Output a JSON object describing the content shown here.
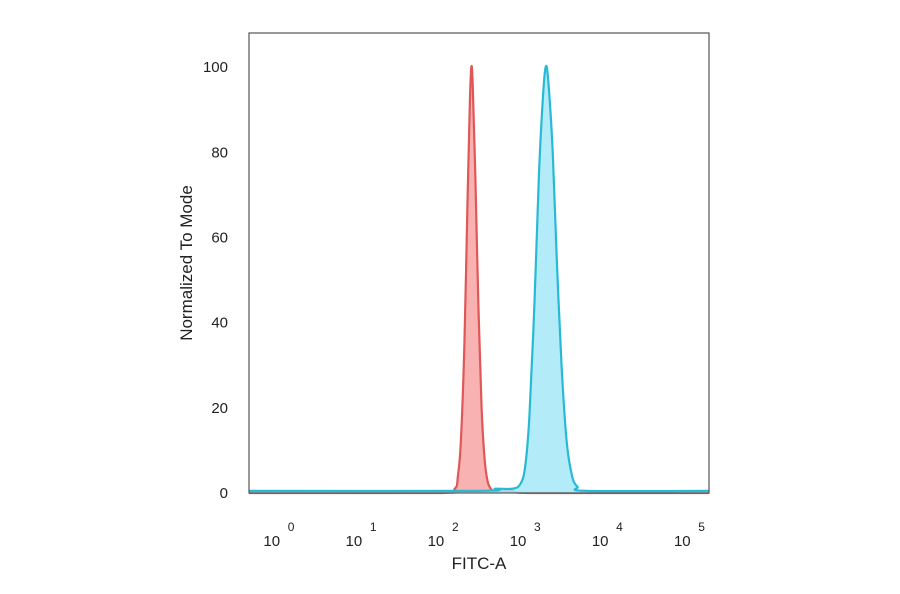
{
  "chart_data": {
    "type": "area",
    "xlabel": "FITC-A",
    "ylabel": "Normalized To Mode",
    "x_scale": "log",
    "xlim": [
      0.5,
      200000
    ],
    "ylim": [
      0,
      108
    ],
    "y_ticks": [
      0,
      20,
      40,
      60,
      80,
      100
    ],
    "x_tick_labels": [
      {
        "base": "10",
        "exp": "0",
        "value": 1
      },
      {
        "base": "10",
        "exp": "1",
        "value": 10
      },
      {
        "base": "10",
        "exp": "2",
        "value": 100
      },
      {
        "base": "10",
        "exp": "3",
        "value": 1000
      },
      {
        "base": "10",
        "exp": "4",
        "value": 10000
      },
      {
        "base": "10",
        "exp": "5",
        "value": 100000
      }
    ],
    "grid": false,
    "series": [
      {
        "color": "#e05757",
        "fill": "#f7a5a5",
        "points": [
          [
            0.5,
            0
          ],
          [
            100,
            0
          ],
          [
            160,
            1
          ],
          [
            175,
            4
          ],
          [
            190,
            12
          ],
          [
            210,
            35
          ],
          [
            230,
            70
          ],
          [
            245,
            92
          ],
          [
            255,
            100
          ],
          [
            265,
            96
          ],
          [
            285,
            75
          ],
          [
            310,
            45
          ],
          [
            340,
            20
          ],
          [
            370,
            8
          ],
          [
            400,
            3
          ],
          [
            440,
            1
          ],
          [
            500,
            0.5
          ],
          [
            800,
            0.5
          ],
          [
            1500,
            0
          ],
          [
            200000,
            0
          ]
        ]
      },
      {
        "color": "#28b9d6",
        "fill": "#a6e8f7",
        "points": [
          [
            0.5,
            0.5
          ],
          [
            300,
            0.5
          ],
          [
            500,
            1
          ],
          [
            800,
            1
          ],
          [
            1000,
            2
          ],
          [
            1150,
            6
          ],
          [
            1300,
            18
          ],
          [
            1500,
            45
          ],
          [
            1700,
            75
          ],
          [
            1900,
            93
          ],
          [
            2050,
            100
          ],
          [
            2200,
            97
          ],
          [
            2500,
            80
          ],
          [
            2800,
            55
          ],
          [
            3200,
            30
          ],
          [
            3700,
            12
          ],
          [
            4300,
            4
          ],
          [
            5000,
            1.5
          ],
          [
            6500,
            0.5
          ],
          [
            200000,
            0.5
          ]
        ]
      }
    ]
  }
}
